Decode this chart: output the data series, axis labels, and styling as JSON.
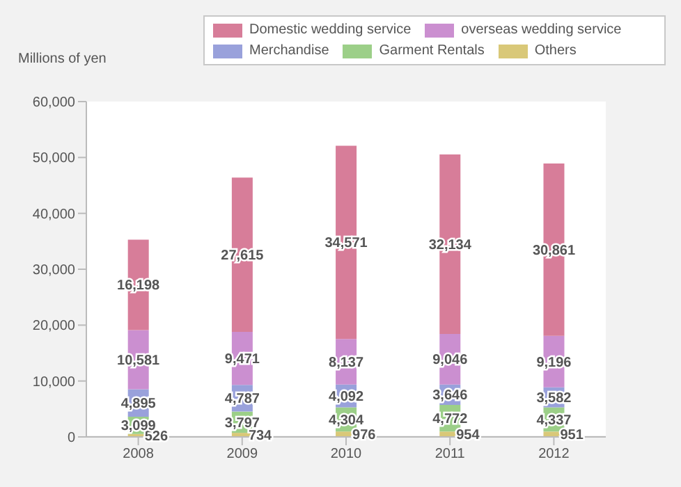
{
  "chart_data": {
    "type": "bar",
    "stacked": true,
    "ylabel": "Millions of yen",
    "categories": [
      "2008",
      "2009",
      "2010",
      "2011",
      "2012"
    ],
    "series": [
      {
        "name": "Others",
        "color": "#d9c878",
        "values": [
          526,
          734,
          976,
          954,
          951
        ],
        "value_labels": [
          "526",
          "734",
          "976",
          "954",
          "951"
        ]
      },
      {
        "name": "Garment Rentals",
        "color": "#9ccf88",
        "values": [
          3099,
          3797,
          4304,
          4772,
          4337
        ],
        "value_labels": [
          "3,099",
          "3,797",
          "4,304",
          "4,772",
          "4,337"
        ]
      },
      {
        "name": "Merchandise",
        "color": "#99a1db",
        "values": [
          4895,
          4787,
          4092,
          3646,
          3582
        ],
        "value_labels": [
          "4,895",
          "4,787",
          "4,092",
          "3,646",
          "3,582"
        ]
      },
      {
        "name": "overseas wedding service",
        "color": "#cb8fd0",
        "values": [
          10581,
          9471,
          8137,
          9046,
          9196
        ],
        "value_labels": [
          "10,581",
          "9,471",
          "8,137",
          "9,046",
          "9,196"
        ]
      },
      {
        "name": "Domestic wedding service",
        "color": "#d77d99",
        "values": [
          16198,
          27615,
          34571,
          32134,
          30861
        ],
        "value_labels": [
          "16,198",
          "27,615",
          "34,571",
          "32,134",
          "30,861"
        ]
      }
    ],
    "ylim": [
      0,
      60000
    ],
    "yticks": [
      {
        "value": 0,
        "label": "0"
      },
      {
        "value": 10000,
        "label": "10,000"
      },
      {
        "value": 20000,
        "label": "20,000"
      },
      {
        "value": 30000,
        "label": "30,000"
      },
      {
        "value": 40000,
        "label": "40,000"
      },
      {
        "value": 50000,
        "label": "50,000"
      },
      {
        "value": 60000,
        "label": "60,000"
      }
    ],
    "grid": false,
    "legend": "top right"
  }
}
